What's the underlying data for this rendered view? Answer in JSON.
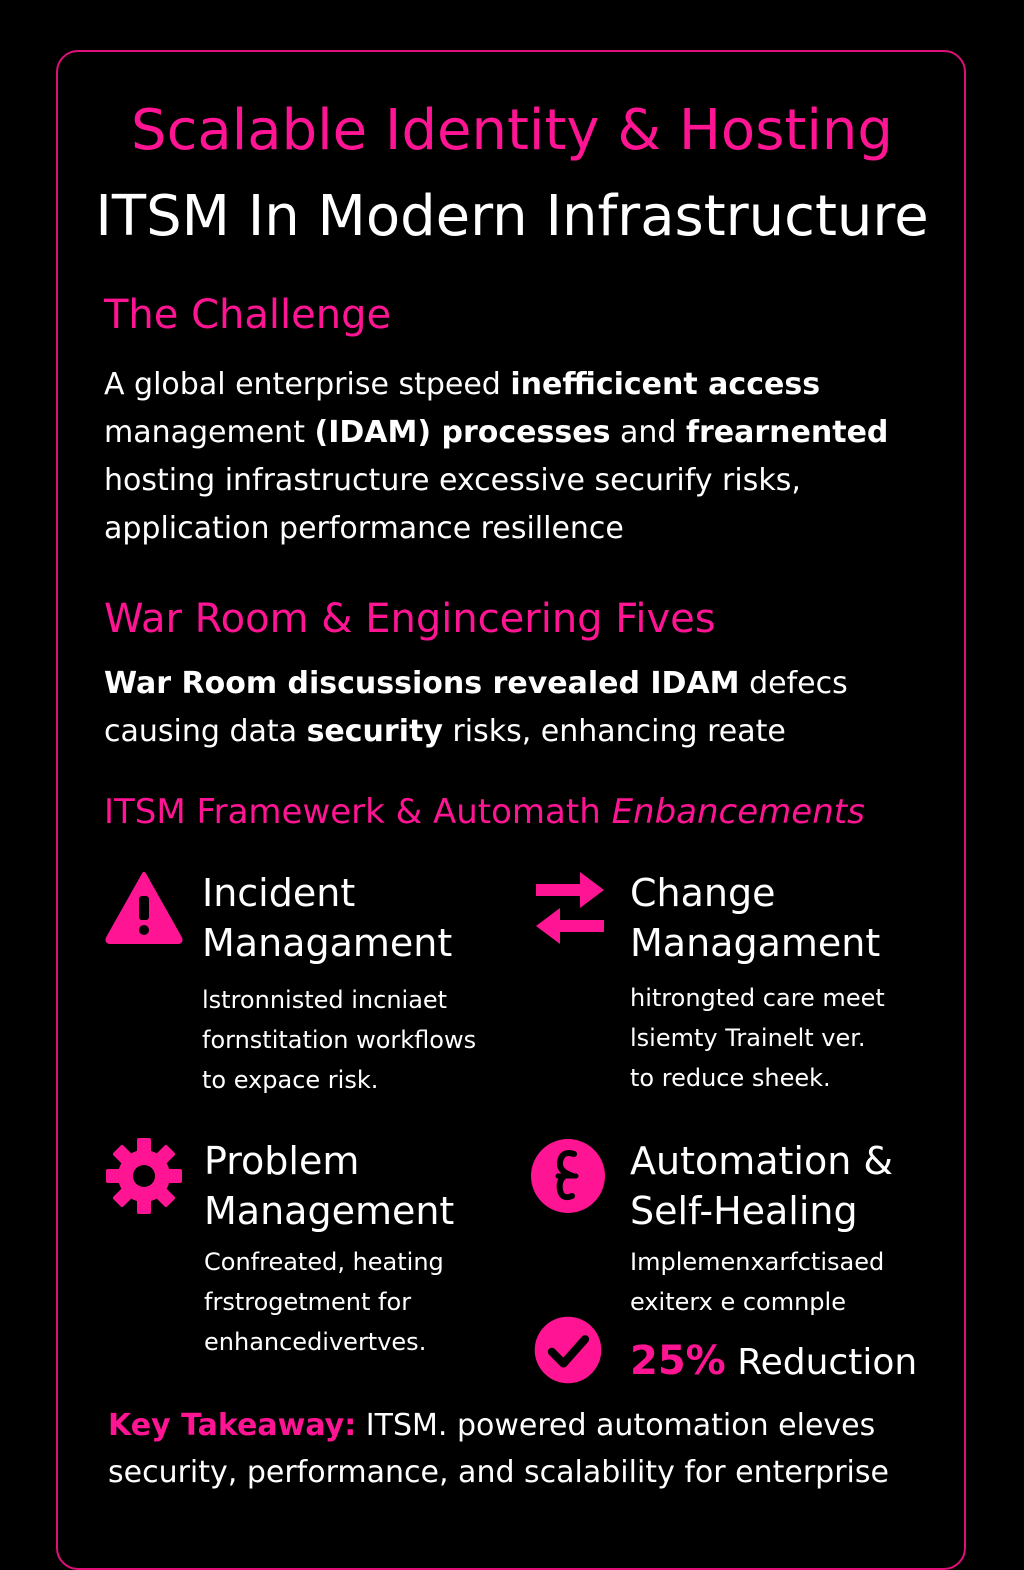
{
  "header": {
    "title_line1": "Scalable Identity & Hosting",
    "title_line2": "ITSM In Modern Infrastructure"
  },
  "challenge": {
    "heading": "The Challenge",
    "p1": "A global enterprise stpeed ",
    "b1": "inefficicent access",
    "p2": "management ",
    "b2": "(IDAM) processes",
    "p3": " and ",
    "b3": "frearnented",
    "p4": "hosting infrastructure excessive securify risks, application performance resillence"
  },
  "war_room": {
    "heading": "War Room & Engincering Fives",
    "b1": "War Room discussions revealed IDAM",
    "p1": " defecs causing data ",
    "b2": "security",
    "p2": " risks, enhancing reate"
  },
  "framework": {
    "heading_main": "ITSM Framewerk & Automath ",
    "heading_italic": "Enbancements",
    "features": [
      {
        "icon": "warning-icon",
        "title_line1": "Incident",
        "title_line2": "Managament",
        "desc": [
          "lstronnisted incniaet",
          "fornstitation workflows",
          "to expace risk."
        ]
      },
      {
        "icon": "swap-arrows-icon",
        "title_line1": "Change",
        "title_line2": "Managament",
        "desc": [
          "hitrongted care meet",
          "lsiemty Trainelt ver.",
          "to reduce sheek."
        ]
      },
      {
        "icon": "gear-icon",
        "title_line1": "Problem",
        "title_line2": "Management",
        "desc": [
          "Confreated, heating",
          "frstrogetment for",
          "enhancedivertves."
        ]
      },
      {
        "icon": "script-symbol-icon",
        "title_line1": "Automation &",
        "title_line2": "Self-Healing",
        "desc": [
          "Implemenxarfctisaed",
          "exiterx e comnple"
        ]
      }
    ]
  },
  "stat": {
    "icon": "checkmark-icon",
    "value": "25%",
    "label": " Reduction"
  },
  "takeaway": {
    "label": "Key Takeaway:",
    "text": " ITSM. powered automation eleves security, performance, and scalability for enterprise"
  },
  "colors": {
    "accent": "#ff1493",
    "border": "#e0107a",
    "background": "#000000",
    "text": "#ffffff"
  }
}
